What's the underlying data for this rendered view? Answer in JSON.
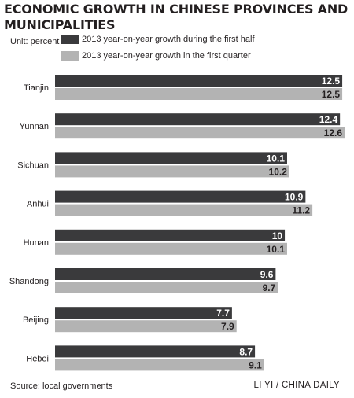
{
  "title": "ECONOMIC GROWTH IN CHINESE PROVINCES AND MUNICIPALITIES",
  "unit_label": "Unit: percent",
  "legend": [
    {
      "label": "2013 year-on-year growth during the first half",
      "color": "#3a3a3c"
    },
    {
      "label": "2013 year-on-year growth in the first quarter",
      "color": "#b3b3b3"
    }
  ],
  "footer": {
    "source": "Source: local governments",
    "credit": "LI YI / CHINA DAILY"
  },
  "chart_data": {
    "type": "bar",
    "orientation": "horizontal",
    "categories": [
      "Tianjin",
      "Yunnan",
      "Sichuan",
      "Anhui",
      "Hunan",
      "Shandong",
      "Beijing",
      "Hebei"
    ],
    "series": [
      {
        "name": "2013 year-on-year growth during the first half",
        "color": "#3a3a3c",
        "values": [
          12.5,
          12.4,
          10.1,
          10.9,
          10,
          9.6,
          7.7,
          8.7
        ],
        "labels": [
          "12.5",
          "12.4",
          "10.1",
          "10.9",
          "10",
          "9.6",
          "7.7",
          "8.7"
        ]
      },
      {
        "name": "2013 year-on-year growth in the first quarter",
        "color": "#b3b3b3",
        "values": [
          12.5,
          12.6,
          10.2,
          11.2,
          10.1,
          9.7,
          7.9,
          9.1
        ],
        "labels": [
          "12.5",
          "12.6",
          "10.2",
          "11.2",
          "10.1",
          "9.7",
          "7.9",
          "9.1"
        ]
      }
    ],
    "xlim": [
      0,
      12.6
    ],
    "grid": false,
    "legend_position": "top"
  }
}
